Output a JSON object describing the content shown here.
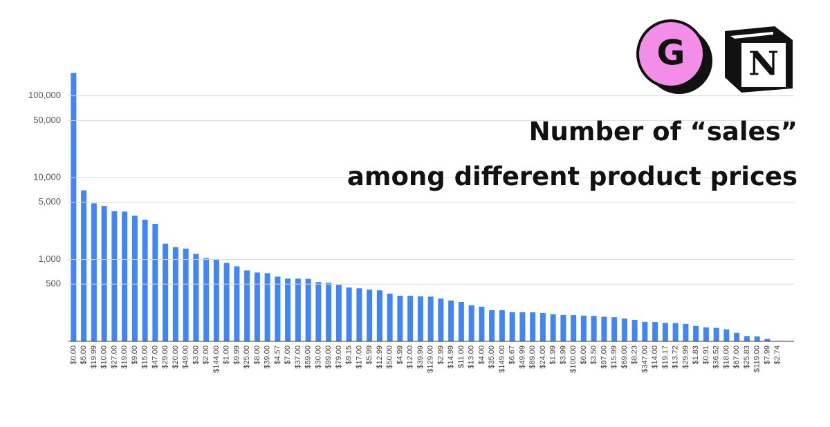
{
  "logos": [
    "G",
    "N"
  ],
  "chart_data": {
    "type": "bar",
    "title": [
      "Number of “sales”",
      "among different product prices"
    ],
    "categories": [
      "$0.00",
      "$5.00",
      "$19.99",
      "$10.00",
      "$27.00",
      "$19.00",
      "$9.00",
      "$15.00",
      "$47.00",
      "$29.00",
      "$20.00",
      "$49.00",
      "$3.00",
      "$2.00",
      "$144.00",
      "$1.00",
      "$9.99",
      "$25.00",
      "$8.00",
      "$39.00",
      "$4.57",
      "$7.00",
      "$37.00",
      "$59.00",
      "$30.00",
      "$99.00",
      "$79.00",
      "$9.15",
      "$17.00",
      "$5.99",
      "$12.99",
      "$50.00",
      "$4.99",
      "$12.00",
      "$39.99",
      "$129.00",
      "$2.99",
      "$14.99",
      "$11.00",
      "$13.00",
      "$4.00",
      "$35.00",
      "$149.00",
      "$6.67",
      "$49.99",
      "$89.00",
      "$24.00",
      "$1.99",
      "$3.99",
      "$100.00",
      "$6.00",
      "$3.50",
      "$97.00",
      "$15.99",
      "$69.00",
      "$8.23",
      "$347.00",
      "$14.00",
      "$19.17",
      "$13.72",
      "$29.99",
      "$1.83",
      "$0.91",
      "$36.52",
      "$18.00",
      "$67.00",
      "$25.83",
      "$119.00",
      "$7.99",
      "$2.74"
    ],
    "values": [
      190000,
      7000,
      4850,
      4500,
      3900,
      3850,
      3430,
      3060,
      2720,
      1560,
      1415,
      1360,
      1170,
      1040,
      1000,
      908,
      825,
      735,
      693,
      680,
      618,
      583,
      583,
      580,
      530,
      520,
      490,
      454,
      445,
      428,
      420,
      382,
      360,
      360,
      354,
      352,
      333,
      315,
      303,
      275,
      265,
      240,
      240,
      227,
      227,
      226,
      222,
      214,
      210,
      209,
      206,
      205,
      200,
      197,
      190,
      183,
      173,
      172,
      168,
      167,
      163,
      154,
      148,
      146,
      140,
      127,
      116,
      115,
      107,
      100
    ],
    "color": "#4285f4",
    "log_scale": true,
    "ylim": [
      100,
      200000
    ],
    "yticks": [
      {
        "value": 100000,
        "label": "100,000"
      },
      {
        "value": 50000,
        "label": "50,000"
      },
      {
        "value": 10000,
        "label": "10,000"
      },
      {
        "value": 5000,
        "label": "5,000"
      },
      {
        "value": 1000,
        "label": "1,000"
      },
      500
    ],
    "grid": true
  }
}
